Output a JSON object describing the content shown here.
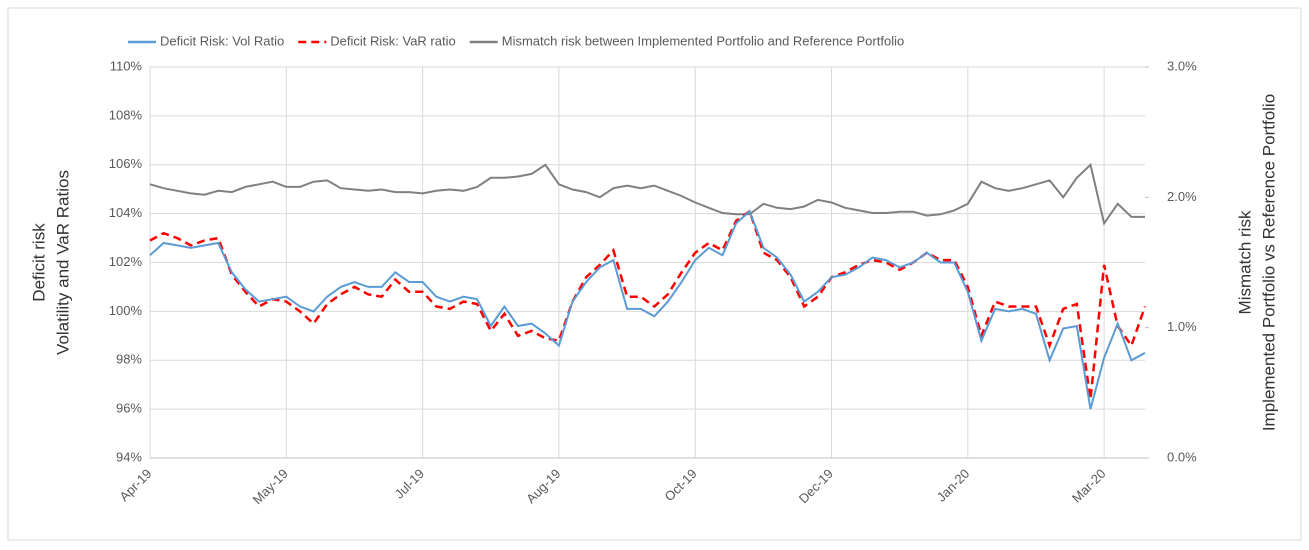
{
  "chart_data": {
    "type": "line",
    "y_label": [
      "Deficit risk",
      "Volatility and VaR Ratios"
    ],
    "y2_label": [
      "Mismatch risk",
      "Implemented Portfolio vs Reference Portfolio"
    ],
    "categories": [
      "Apr-19",
      null,
      null,
      null,
      null,
      null,
      null,
      null,
      null,
      null,
      "May-19",
      null,
      null,
      null,
      null,
      null,
      null,
      null,
      null,
      null,
      "Jul-19",
      null,
      null,
      null,
      null,
      null,
      null,
      null,
      null,
      null,
      "Aug-19",
      null,
      null,
      null,
      null,
      null,
      null,
      null,
      null,
      null,
      "Oct-19",
      null,
      null,
      null,
      null,
      null,
      null,
      null,
      null,
      null,
      "Dec-19",
      null,
      null,
      null,
      null,
      null,
      null,
      null,
      null,
      null,
      "Jan-20",
      null,
      null,
      null,
      null,
      null,
      null,
      null,
      null,
      null,
      "Mar-20",
      null,
      null,
      null
    ],
    "ylim": [
      94,
      110
    ],
    "yticks": [
      {
        "value": 94,
        "label": "94%"
      },
      {
        "value": 96,
        "label": "96%"
      },
      {
        "value": 98,
        "label": "98%"
      },
      {
        "value": 100,
        "label": "100%"
      },
      {
        "value": 102,
        "label": "102%"
      },
      {
        "value": 104,
        "label": "104%"
      },
      {
        "value": 106,
        "label": "106%"
      },
      {
        "value": 108,
        "label": "108%"
      },
      {
        "value": 110,
        "label": "110%"
      }
    ],
    "y2lim": [
      0,
      3
    ],
    "y2ticks": [
      {
        "value": 0,
        "label": "0.0%"
      },
      {
        "value": 1,
        "label": "1.0%"
      },
      {
        "value": 2,
        "label": "2.0%"
      },
      {
        "value": 3,
        "label": "3.0%"
      }
    ],
    "grid": true,
    "legend": "top",
    "series": [
      {
        "name": "Deficit Risk: Vol Ratio",
        "color": "#5b9bd5",
        "dash": false,
        "values": [
          102.3,
          102.8,
          102.7,
          102.6,
          102.7,
          102.8,
          101.6,
          100.9,
          100.4,
          100.5,
          100.6,
          100.2,
          100.0,
          100.6,
          101.0,
          101.2,
          101.0,
          101.0,
          101.6,
          101.2,
          101.2,
          100.6,
          100.4,
          100.6,
          100.5,
          99.4,
          100.2,
          99.4,
          99.5,
          99.1,
          98.6,
          100.4,
          101.2,
          101.8,
          102.1,
          100.1,
          100.1,
          99.8,
          100.4,
          101.2,
          102.1,
          102.6,
          102.3,
          103.6,
          104.1,
          102.6,
          102.2,
          101.5,
          100.4,
          100.8,
          101.4,
          101.5,
          101.8,
          102.2,
          102.1,
          101.8,
          102.0,
          102.4,
          102.0,
          102.0,
          100.8,
          98.8,
          100.1,
          100.0,
          100.1,
          99.9,
          98.0,
          99.3,
          99.4,
          96.0,
          98.1,
          99.5,
          98.0,
          98.3
        ]
      },
      {
        "name": "Deficit Risk: VaR ratio",
        "color": "#ff0000",
        "dash": true,
        "values": [
          102.9,
          103.2,
          103.0,
          102.7,
          102.9,
          103.0,
          101.5,
          100.8,
          100.2,
          100.5,
          100.4,
          100.0,
          99.5,
          100.3,
          100.7,
          101.0,
          100.7,
          100.6,
          101.3,
          100.8,
          100.8,
          100.2,
          100.1,
          100.4,
          100.3,
          99.2,
          99.9,
          99.0,
          99.2,
          98.9,
          98.8,
          100.4,
          101.4,
          101.9,
          102.5,
          100.6,
          100.6,
          100.2,
          100.7,
          101.6,
          102.4,
          102.8,
          102.5,
          103.7,
          104.1,
          102.4,
          102.1,
          101.4,
          100.2,
          100.6,
          101.4,
          101.6,
          101.9,
          102.1,
          102.0,
          101.7,
          102.0,
          102.4,
          102.1,
          102.1,
          101.0,
          99.0,
          100.4,
          100.2,
          100.2,
          100.2,
          98.6,
          100.1,
          100.3,
          96.4,
          101.9,
          99.4,
          98.6,
          100.2
        ]
      },
      {
        "name": "Mismatch risk between Implemented Portfolio and Reference Portfolio",
        "color": "#808080",
        "dash": false,
        "axis": "y2",
        "values": [
          2.1,
          2.07,
          2.05,
          2.03,
          2.02,
          2.05,
          2.04,
          2.08,
          2.1,
          2.12,
          2.08,
          2.08,
          2.12,
          2.13,
          2.07,
          2.06,
          2.05,
          2.06,
          2.04,
          2.04,
          2.03,
          2.05,
          2.06,
          2.05,
          2.08,
          2.15,
          2.15,
          2.16,
          2.18,
          2.25,
          2.1,
          2.06,
          2.04,
          2.0,
          2.07,
          2.09,
          2.07,
          2.09,
          2.05,
          2.01,
          1.96,
          1.92,
          1.88,
          1.87,
          1.87,
          1.95,
          1.92,
          1.91,
          1.93,
          1.98,
          1.96,
          1.92,
          1.9,
          1.88,
          1.88,
          1.89,
          1.89,
          1.86,
          1.87,
          1.9,
          1.95,
          2.12,
          2.07,
          2.05,
          2.07,
          2.1,
          2.13,
          2.0,
          2.15,
          2.25,
          1.8,
          1.95,
          1.85,
          1.85
        ]
      }
    ]
  }
}
